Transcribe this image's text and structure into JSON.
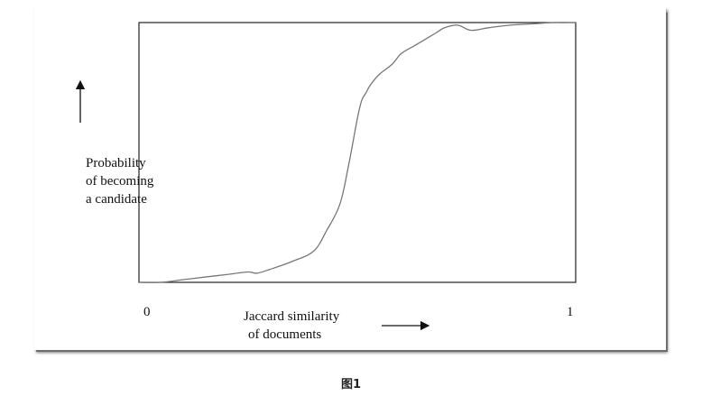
{
  "chart_data": {
    "type": "line",
    "ylabel_lines": [
      "Probability",
      "of becoming",
      "a candidate"
    ],
    "xlabel_lines": [
      "Jaccard similarity",
      "of documents"
    ],
    "x_ticks": [
      "0",
      "1"
    ],
    "xlim": [
      0,
      1
    ],
    "ylim": [
      0,
      1
    ],
    "grid": false,
    "series": [
      {
        "x": [
          0.0,
          0.05,
          0.1,
          0.15,
          0.2,
          0.25,
          0.27,
          0.3,
          0.35,
          0.4,
          0.43,
          0.46,
          0.48,
          0.5,
          0.51,
          0.52,
          0.53,
          0.55,
          0.58,
          0.6,
          0.63,
          0.65,
          0.68,
          0.7,
          0.73,
          0.76,
          0.8,
          0.85,
          0.9,
          0.95,
          1.0
        ],
        "y": [
          0.0,
          0.0,
          0.01,
          0.02,
          0.03,
          0.04,
          0.035,
          0.05,
          0.08,
          0.12,
          0.2,
          0.3,
          0.45,
          0.63,
          0.7,
          0.73,
          0.76,
          0.8,
          0.84,
          0.88,
          0.91,
          0.93,
          0.96,
          0.98,
          0.99,
          0.97,
          0.98,
          0.99,
          0.995,
          1.0,
          1.0
        ]
      }
    ]
  },
  "caption": "图1"
}
